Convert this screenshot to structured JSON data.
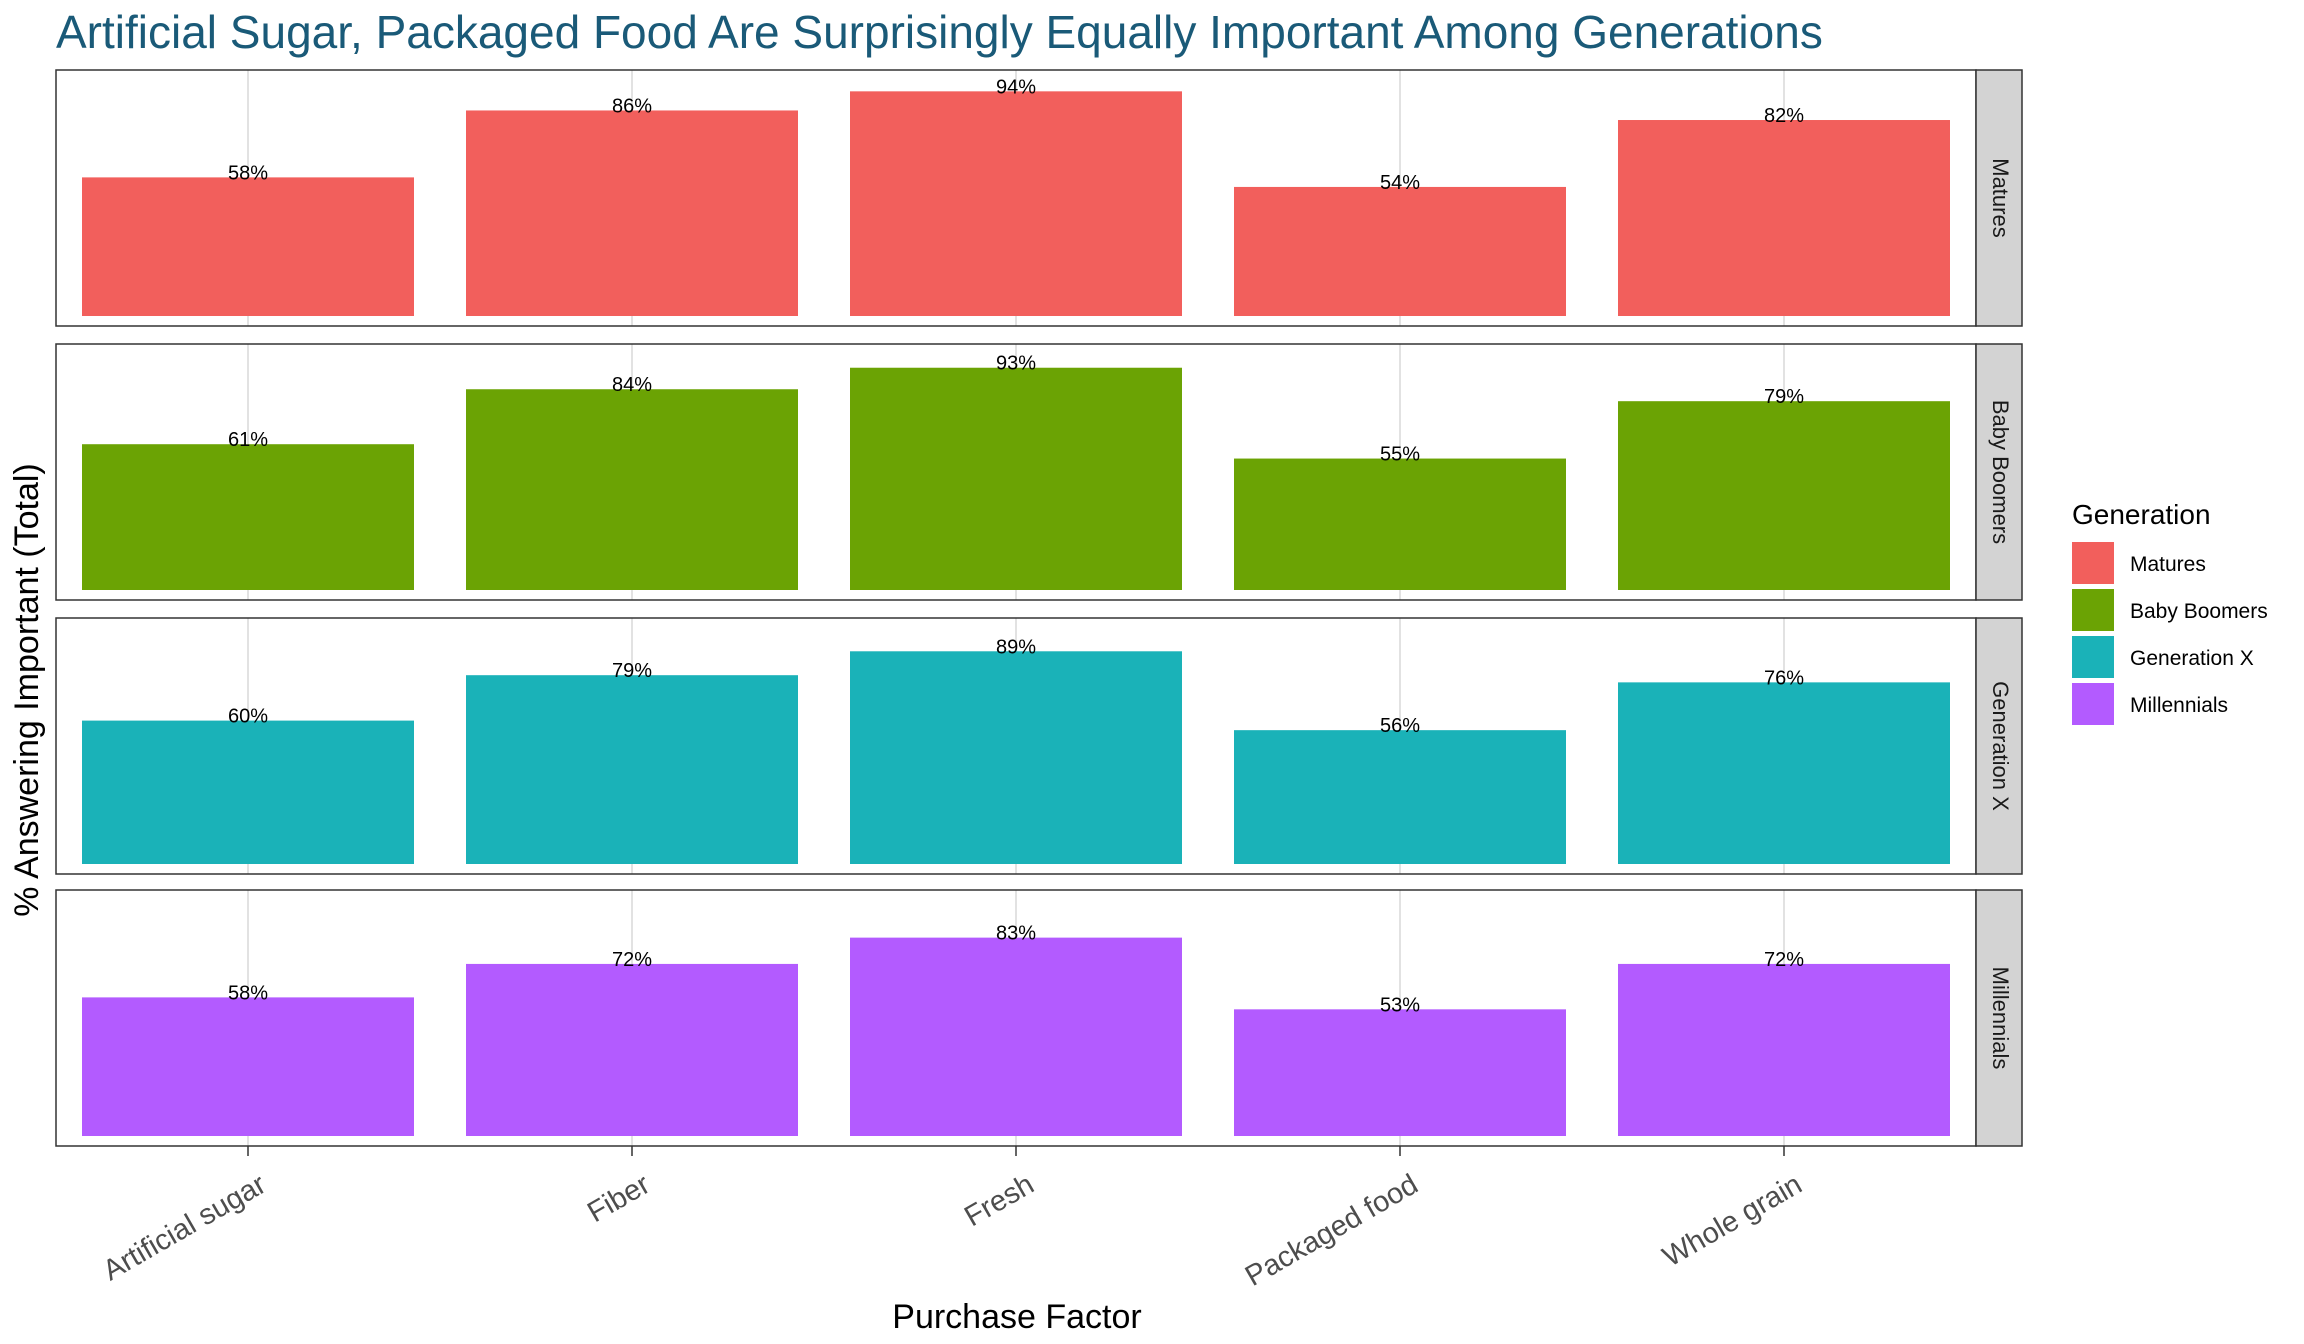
{
  "chart_data": {
    "type": "bar",
    "title": "Artificial Sugar, Packaged Food Are Surprisingly Equally Important Among Generations",
    "xlabel": "Purchase Factor",
    "ylabel": "% Answering Important (Total)",
    "categories": [
      "Artificial sugar",
      "Fiber",
      "Fresh",
      "Packaged food",
      "Whole grain"
    ],
    "facet": "rows",
    "legend": {
      "title": "Generation",
      "placement": "right"
    },
    "grid": true,
    "ylim": [
      0,
      100
    ],
    "value_suffix": "%",
    "colors": {
      "title": "#1a5a78",
      "grid": "#d9d9d9",
      "strip_bg": "#d3d3d3",
      "panel_border": "#333333",
      "text": "#000000",
      "axis_text": "#4d4d4d"
    },
    "series": [
      {
        "name": "Matures",
        "color": "#f25f5c",
        "values": [
          58,
          86,
          94,
          54,
          82
        ],
        "labels": [
          "58%",
          "86%",
          "94%",
          "54%",
          "82%"
        ]
      },
      {
        "name": "Baby Boomers",
        "color": "#6ba304",
        "values": [
          61,
          84,
          93,
          55,
          79
        ],
        "labels": [
          "61%",
          "84%",
          "93%",
          "55%",
          "79%"
        ]
      },
      {
        "name": "Generation X",
        "color": "#1ab2b8",
        "values": [
          60,
          79,
          89,
          56,
          76
        ],
        "labels": [
          "60%",
          "79%",
          "89%",
          "56%",
          "76%"
        ]
      },
      {
        "name": "Millennials",
        "color": "#b35bff",
        "values": [
          58,
          72,
          83,
          53,
          72
        ],
        "labels": [
          "58%",
          "72%",
          "83%",
          "53%",
          "72%"
        ]
      }
    ]
  }
}
